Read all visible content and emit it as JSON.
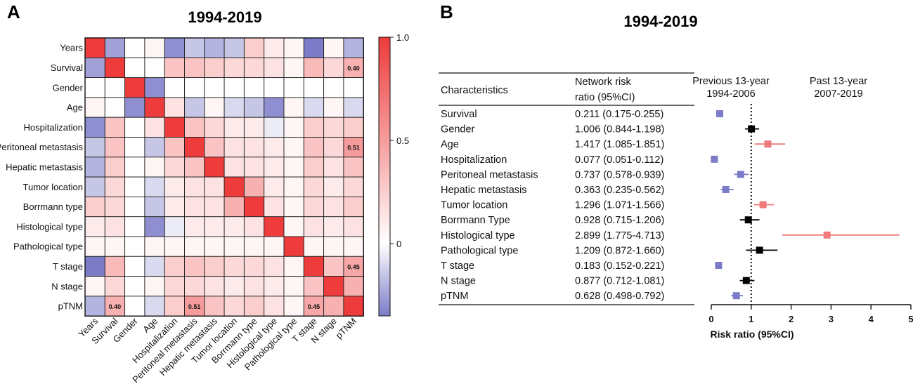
{
  "chart_data": [
    {
      "type": "heatmap",
      "panel_label": "A",
      "title": "1994-2019",
      "variables": [
        "Years",
        "Survival",
        "Gender",
        "Age",
        "Hospitalization",
        "Peritoneal metastasis",
        "Hepatic metastasis",
        "Tumor location",
        "Borrmann type",
        "Histological type",
        "Pathological type",
        "T stage",
        "N stage",
        "pTNM"
      ],
      "matrix": [
        [
          1.0,
          -0.25,
          0.0,
          0.05,
          -0.3,
          -0.15,
          -0.2,
          -0.15,
          0.25,
          0.1,
          0.05,
          -0.35,
          0.05,
          -0.2
        ],
        [
          -0.25,
          1.0,
          0.0,
          0.0,
          0.3,
          0.3,
          0.25,
          0.2,
          0.2,
          0.15,
          0.05,
          0.35,
          0.2,
          0.4
        ],
        [
          0.0,
          0.0,
          1.0,
          -0.3,
          0.0,
          0.0,
          0.0,
          0.0,
          0.0,
          0.0,
          0.0,
          0.0,
          0.0,
          0.0
        ],
        [
          0.05,
          0.0,
          -0.3,
          1.0,
          0.15,
          -0.15,
          0.05,
          -0.1,
          -0.15,
          -0.3,
          0.05,
          -0.1,
          0.05,
          -0.1
        ],
        [
          -0.3,
          0.3,
          0.0,
          0.15,
          1.0,
          0.3,
          0.2,
          0.1,
          0.1,
          -0.05,
          0.05,
          0.25,
          0.2,
          0.25
        ],
        [
          -0.15,
          0.3,
          0.0,
          -0.15,
          0.3,
          1.0,
          0.3,
          0.15,
          0.15,
          0.1,
          0.05,
          0.3,
          0.2,
          0.51
        ],
        [
          -0.2,
          0.25,
          0.0,
          0.05,
          0.2,
          0.3,
          1.0,
          0.15,
          0.15,
          0.1,
          0.05,
          0.25,
          0.15,
          0.3
        ],
        [
          -0.15,
          0.2,
          0.0,
          -0.1,
          0.1,
          0.15,
          0.15,
          1.0,
          0.4,
          0.1,
          0.05,
          0.2,
          0.1,
          0.2
        ],
        [
          0.25,
          0.2,
          0.0,
          -0.15,
          0.1,
          0.15,
          0.15,
          0.4,
          1.0,
          0.15,
          0.05,
          0.2,
          0.15,
          0.25
        ],
        [
          0.1,
          0.15,
          0.0,
          -0.3,
          -0.05,
          0.1,
          0.1,
          0.1,
          0.15,
          1.0,
          0.05,
          0.15,
          0.1,
          0.15
        ],
        [
          0.05,
          0.05,
          0.0,
          0.05,
          0.05,
          0.05,
          0.05,
          0.05,
          0.05,
          0.05,
          1.0,
          0.05,
          0.05,
          0.05
        ],
        [
          -0.35,
          0.35,
          0.0,
          -0.1,
          0.25,
          0.3,
          0.25,
          0.2,
          0.2,
          0.15,
          0.05,
          1.0,
          0.3,
          0.45
        ],
        [
          0.05,
          0.2,
          0.0,
          0.05,
          0.2,
          0.2,
          0.15,
          0.1,
          0.15,
          0.1,
          0.05,
          0.3,
          1.0,
          0.4
        ],
        [
          -0.2,
          0.4,
          0.0,
          -0.1,
          0.25,
          0.51,
          0.3,
          0.2,
          0.25,
          0.15,
          0.05,
          0.45,
          0.4,
          1.0
        ]
      ],
      "annotations": [
        {
          "row": 1,
          "col": 13,
          "text": "0.40"
        },
        {
          "row": 5,
          "col": 13,
          "text": "0.51"
        },
        {
          "row": 11,
          "col": 13,
          "text": "0.45"
        },
        {
          "row": 13,
          "col": 1,
          "text": "0.40"
        },
        {
          "row": 13,
          "col": 5,
          "text": "0.51"
        },
        {
          "row": 13,
          "col": 11,
          "text": "0.45"
        }
      ],
      "colorbar": {
        "min": -0.35,
        "max": 1.0,
        "ticks": [
          "1.0",
          "0.5",
          "0"
        ],
        "tick_values": [
          1.0,
          0.5,
          0.0
        ],
        "negative_color": "#7b7bc8",
        "zero_color": "#ffffff",
        "positive_color": "#ee3b3b"
      }
    },
    {
      "type": "forest",
      "panel_label": "B",
      "title": "1994-2019",
      "header": {
        "characteristics": "Characteristics",
        "ratio_line1": "Network risk",
        "ratio_line2": "ratio (95%CI)",
        "left_group_line1": "Previous 13-year",
        "left_group_line2": "1994-2006",
        "right_group_line1": "Past 13-year",
        "right_group_line2": "2007-2019"
      },
      "rows": [
        {
          "label": "Survival",
          "text": "0.211 (0.175-0.255)",
          "estimate": 0.211,
          "lower": 0.175,
          "upper": 0.255,
          "color": "#7b7bc8"
        },
        {
          "label": "Gender",
          "text": "1.006 (0.844-1.198)",
          "estimate": 1.006,
          "lower": 0.844,
          "upper": 1.198,
          "color": "#000000"
        },
        {
          "label": "Age",
          "text": "1.417 (1.085-1.851)",
          "estimate": 1.417,
          "lower": 1.085,
          "upper": 1.851,
          "color": "#ee7a7a"
        },
        {
          "label": "Hospitalization",
          "text": "0.077 (0.051-0.112)",
          "estimate": 0.077,
          "lower": 0.051,
          "upper": 0.112,
          "color": "#7b7bc8"
        },
        {
          "label": "Peritoneal metastasis",
          "text": "0.737 (0.578-0.939)",
          "estimate": 0.737,
          "lower": 0.578,
          "upper": 0.939,
          "color": "#7b7bc8"
        },
        {
          "label": "Hepatic metastasis",
          "text": "0.363 (0.235-0.562)",
          "estimate": 0.363,
          "lower": 0.235,
          "upper": 0.562,
          "color": "#7b7bc8"
        },
        {
          "label": "Tumor location",
          "text": "1.296 (1.071-1.566)",
          "estimate": 1.296,
          "lower": 1.071,
          "upper": 1.566,
          "color": "#ee7a7a"
        },
        {
          "label": "Borrmann Type",
          "text": "0.928 (0.715-1.206)",
          "estimate": 0.928,
          "lower": 0.715,
          "upper": 1.206,
          "color": "#000000"
        },
        {
          "label": "Histological type",
          "text": "2.899 (1.775-4.713)",
          "estimate": 2.899,
          "lower": 1.775,
          "upper": 4.713,
          "color": "#ee7a7a"
        },
        {
          "label": "Pathological type",
          "text": "1.209 (0.872-1.660)",
          "estimate": 1.209,
          "lower": 0.872,
          "upper": 1.66,
          "color": "#000000"
        },
        {
          "label": "T stage",
          "text": "0.183 (0.152-0.221)",
          "estimate": 0.183,
          "lower": 0.152,
          "upper": 0.221,
          "color": "#7b7bc8"
        },
        {
          "label": "N stage",
          "text": "0.877 (0.712-1.081)",
          "estimate": 0.877,
          "lower": 0.712,
          "upper": 1.081,
          "color": "#000000"
        },
        {
          "label": "pTNM",
          "text": "0.628 (0.498-0.792)",
          "estimate": 0.628,
          "lower": 0.498,
          "upper": 0.792,
          "color": "#7b7bc8"
        }
      ],
      "xlim": [
        0,
        5
      ],
      "xticks": [
        0,
        1,
        2,
        3,
        4,
        5
      ],
      "reference_line": 1,
      "xlabel": "Risk ratio (95%CI)"
    }
  ]
}
